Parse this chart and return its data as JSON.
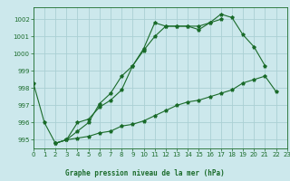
{
  "title": "Graphe pression niveau de la mer (hPa)",
  "bg_color": "#cce8ec",
  "grid_color": "#aacfd4",
  "line_color": "#1a6b2a",
  "title_bg": "#c0dce0",
  "xlim": [
    0,
    23
  ],
  "ylim": [
    994.5,
    1002.7
  ],
  "yticks": [
    995,
    996,
    997,
    998,
    999,
    1000,
    1001,
    1002
  ],
  "xticks": [
    0,
    1,
    2,
    3,
    4,
    5,
    6,
    7,
    8,
    9,
    10,
    11,
    12,
    13,
    14,
    15,
    16,
    17,
    18,
    19,
    20,
    21,
    22,
    23
  ],
  "series": [
    [
      998.3,
      996.0,
      994.8,
      995.0,
      996.0,
      996.2,
      996.9,
      997.3,
      997.9,
      999.3,
      1000.3,
      1001.8,
      1001.6,
      1001.6,
      1001.6,
      1001.6,
      1001.8,
      1002.0,
      null,
      null,
      null,
      null,
      null,
      null
    ],
    [
      null,
      null,
      994.8,
      995.0,
      995.5,
      996.0,
      997.1,
      997.7,
      998.7,
      999.3,
      1000.2,
      1001.0,
      1001.6,
      1001.6,
      1001.6,
      1001.4,
      1001.8,
      1002.3,
      1002.1,
      1001.1,
      1000.4,
      999.3,
      null,
      null
    ],
    [
      null,
      null,
      994.8,
      995.0,
      995.1,
      995.2,
      995.4,
      995.5,
      995.8,
      995.9,
      996.1,
      996.4,
      996.7,
      997.0,
      997.2,
      997.3,
      997.5,
      997.7,
      997.9,
      998.3,
      998.5,
      998.7,
      997.8,
      null
    ]
  ],
  "tick_fontsize": 5.0,
  "label_fontsize": 5.5
}
